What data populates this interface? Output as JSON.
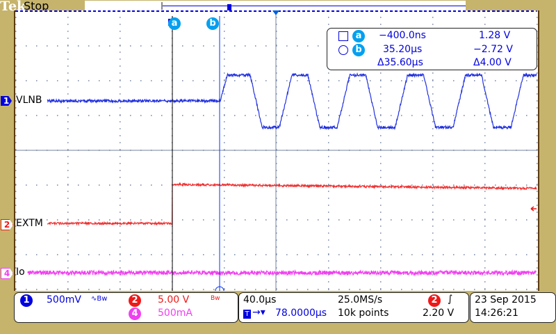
{
  "header": {
    "brand": "Tek",
    "status": "Stop"
  },
  "channels": [
    {
      "num": "1",
      "name": "VLNB",
      "scale": "500mV",
      "bw": "∿Bw",
      "color": "#0000e0"
    },
    {
      "num": "2",
      "name": "EXTM",
      "scale": "5.00 V",
      "bw": "Bw",
      "color": "#f01818"
    },
    {
      "num": "4",
      "name": "Io",
      "scale": "500mA",
      "color": "#f040f0"
    }
  ],
  "cursors": {
    "a": {
      "label": "a",
      "time": "−400.0ns",
      "value": "1.28 V"
    },
    "b": {
      "label": "b",
      "time": "35.20µs",
      "value": "−2.72 V"
    },
    "delta_time": "Δ35.60µs",
    "delta_value": "Δ4.00 V"
  },
  "timebase": {
    "scale": "40.0µs",
    "sample_rate": "25.0MS/s",
    "trigger_delay": "78.0000µs",
    "record_length": "10k points",
    "trigger_source": "2",
    "trigger_slope": "rising",
    "trigger_level": "2.20 V"
  },
  "datetime": {
    "date": "23 Sep  2015",
    "time": "14:26:21"
  },
  "icons": {
    "trigger": "trigger-T-icon",
    "cursor_a": "square-icon",
    "cursor_b": "circle-icon"
  }
}
